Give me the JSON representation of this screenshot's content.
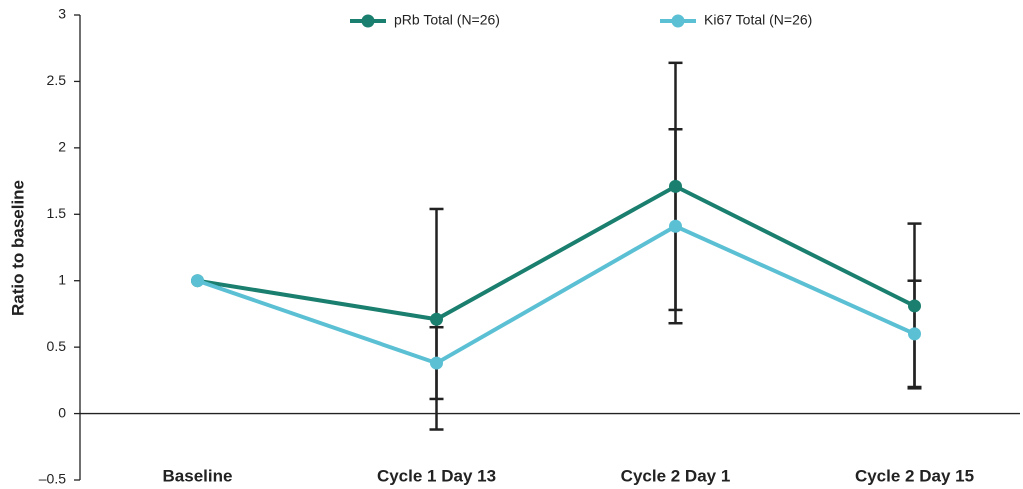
{
  "chart_data": {
    "type": "line",
    "y_label": "Ratio to baseline",
    "categories": [
      "Baseline",
      "Cycle 1 Day 13",
      "Cycle 2 Day 1",
      "Cycle 2 Day 15"
    ],
    "series": [
      {
        "name": "pRb Total (N=26)",
        "color": "#1a7f6e",
        "values": [
          1,
          0.71,
          1.71,
          0.81
        ],
        "errors": [
          null,
          0.83,
          0.93,
          0.62
        ]
      },
      {
        "name": "Ki67 Total (N=26)",
        "color": "#5bc0d4",
        "values": [
          1,
          0.38,
          1.41,
          0.6
        ],
        "errors": [
          null,
          0.27,
          0.73,
          0.4
        ]
      }
    ],
    "ylim": [
      -0.5,
      3
    ],
    "yticks": [
      {
        "value": -0.5,
        "label": "–0.5"
      },
      0,
      0.5,
      1,
      1.5,
      2,
      2.5,
      3
    ],
    "legend": "top"
  }
}
